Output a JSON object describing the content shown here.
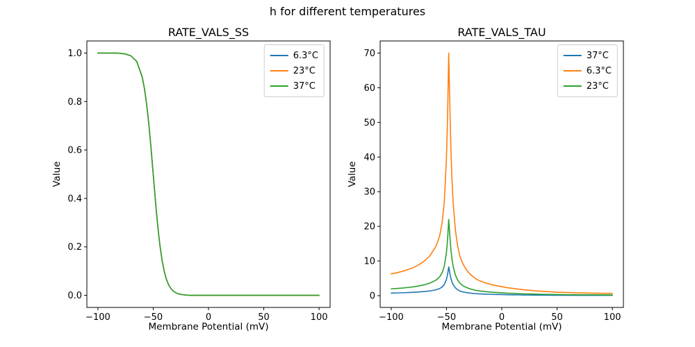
{
  "figure": {
    "suptitle": "h for different temperatures",
    "background": "#ffffff"
  },
  "chart_data": [
    {
      "type": "line",
      "title": "RATE_VALS_SS",
      "xlabel": "Membrane Potential (mV)",
      "ylabel": "Value",
      "xlim": [
        -110,
        110
      ],
      "ylim": [
        -0.05,
        1.05
      ],
      "xticks": [
        -100,
        -50,
        0,
        50,
        100
      ],
      "xtick_labels": [
        "−100",
        "−50",
        "0",
        "50",
        "100"
      ],
      "yticks": [
        0.0,
        0.2,
        0.4,
        0.6,
        0.8,
        1.0
      ],
      "ytick_labels": [
        "0.0",
        "0.2",
        "0.4",
        "0.6",
        "0.8",
        "1.0"
      ],
      "legend_position": "upper right",
      "grid": false,
      "note": "All three temperature curves overlap exactly; the last-drawn green (37°C) curve is the visible one.",
      "x": [
        -100,
        -95,
        -90,
        -85,
        -80,
        -75,
        -70,
        -65,
        -60,
        -58,
        -56,
        -54,
        -52,
        -50,
        -49,
        -48,
        -47,
        -46,
        -45,
        -44,
        -42,
        -40,
        -38,
        -36,
        -34,
        -32,
        -30,
        -28,
        -26,
        -24,
        -22,
        -20,
        -15,
        -10,
        -5,
        0,
        5,
        10,
        15,
        20,
        30,
        40,
        50,
        60,
        70,
        80,
        90,
        100
      ],
      "series": [
        {
          "name": "6.3°C",
          "color": "#1f77b4",
          "values": [
            1.0,
            1.0,
            1.0,
            1.0,
            0.999,
            0.996,
            0.988,
            0.966,
            0.902,
            0.855,
            0.791,
            0.709,
            0.609,
            0.5,
            0.445,
            0.391,
            0.339,
            0.291,
            0.248,
            0.209,
            0.145,
            0.098,
            0.065,
            0.043,
            0.028,
            0.018,
            0.012,
            0.007,
            0.005,
            0.003,
            0.002,
            0.001,
            0.0,
            0.0,
            0.0,
            0.0,
            0.0,
            0.0,
            0.0,
            0.0,
            0.0,
            0.0,
            0.0,
            0.0,
            0.0,
            0.0,
            0.0,
            0.0
          ]
        },
        {
          "name": "23°C",
          "color": "#ff7f0e",
          "values": [
            1.0,
            1.0,
            1.0,
            1.0,
            0.999,
            0.996,
            0.988,
            0.966,
            0.902,
            0.855,
            0.791,
            0.709,
            0.609,
            0.5,
            0.445,
            0.391,
            0.339,
            0.291,
            0.248,
            0.209,
            0.145,
            0.098,
            0.065,
            0.043,
            0.028,
            0.018,
            0.012,
            0.007,
            0.005,
            0.003,
            0.002,
            0.001,
            0.0,
            0.0,
            0.0,
            0.0,
            0.0,
            0.0,
            0.0,
            0.0,
            0.0,
            0.0,
            0.0,
            0.0,
            0.0,
            0.0,
            0.0,
            0.0
          ]
        },
        {
          "name": "37°C",
          "color": "#2ca02c",
          "values": [
            1.0,
            1.0,
            1.0,
            1.0,
            0.999,
            0.996,
            0.988,
            0.966,
            0.902,
            0.855,
            0.791,
            0.709,
            0.609,
            0.5,
            0.445,
            0.391,
            0.339,
            0.291,
            0.248,
            0.209,
            0.145,
            0.098,
            0.065,
            0.043,
            0.028,
            0.018,
            0.012,
            0.007,
            0.005,
            0.003,
            0.002,
            0.001,
            0.0,
            0.0,
            0.0,
            0.0,
            0.0,
            0.0,
            0.0,
            0.0,
            0.0,
            0.0,
            0.0,
            0.0,
            0.0,
            0.0,
            0.0,
            0.0
          ]
        }
      ]
    },
    {
      "type": "line",
      "title": "RATE_VALS_TAU",
      "xlabel": "Membrane Potential (mV)",
      "ylabel": "Value",
      "xlim": [
        -110,
        110
      ],
      "ylim": [
        -3.4,
        73.5
      ],
      "xticks": [
        -100,
        -50,
        0,
        50,
        100
      ],
      "xtick_labels": [
        "−100",
        "−50",
        "0",
        "50",
        "100"
      ],
      "yticks": [
        0,
        10,
        20,
        30,
        40,
        50,
        60,
        70
      ],
      "ytick_labels": [
        "0",
        "10",
        "20",
        "30",
        "40",
        "50",
        "60",
        "70"
      ],
      "legend_position": "upper right",
      "grid": false,
      "note": "Sharp resonance peak near −48 mV; peak heights ≈ 8.3 (37°C), 22 (23°C), 70 (6.3°C).",
      "x": [
        -100,
        -95,
        -90,
        -85,
        -80,
        -75,
        -70,
        -65,
        -60,
        -58,
        -56,
        -54,
        -52,
        -50,
        -49,
        -48,
        -47,
        -46,
        -45,
        -44,
        -42,
        -40,
        -38,
        -36,
        -34,
        -32,
        -30,
        -28,
        -26,
        -24,
        -22,
        -20,
        -15,
        -10,
        -5,
        0,
        5,
        10,
        15,
        20,
        30,
        40,
        50,
        60,
        70,
        80,
        90,
        100
      ],
      "series": [
        {
          "name": "37°C",
          "color": "#1f77b4",
          "values": [
            0.75,
            0.78,
            0.83,
            0.89,
            0.96,
            1.06,
            1.19,
            1.36,
            1.66,
            1.84,
            2.08,
            2.49,
            3.2,
            4.74,
            6.17,
            8.3,
            6.52,
            4.98,
            3.91,
            3.2,
            2.25,
            1.72,
            1.36,
            1.16,
            1.01,
            0.89,
            0.79,
            0.71,
            0.65,
            0.59,
            0.55,
            0.51,
            0.44,
            0.38,
            0.34,
            0.31,
            0.27,
            0.25,
            0.23,
            0.2,
            0.17,
            0.14,
            0.12,
            0.11,
            0.09,
            0.09,
            0.08,
            0.08
          ]
        },
        {
          "name": "6.3°C",
          "color": "#ff7f0e",
          "values": [
            6.3,
            6.6,
            7.0,
            7.5,
            8.1,
            8.9,
            10.0,
            11.5,
            14.0,
            15.5,
            17.5,
            21.0,
            27.0,
            40.0,
            52.0,
            70.0,
            55.0,
            42.0,
            33.0,
            27.0,
            19.0,
            14.5,
            11.5,
            9.8,
            8.5,
            7.5,
            6.7,
            6.0,
            5.5,
            5.0,
            4.6,
            4.3,
            3.7,
            3.2,
            2.9,
            2.6,
            2.3,
            2.1,
            1.9,
            1.7,
            1.4,
            1.2,
            1.0,
            0.9,
            0.8,
            0.75,
            0.7,
            0.65
          ]
        },
        {
          "name": "23°C",
          "color": "#2ca02c",
          "values": [
            1.98,
            2.08,
            2.2,
            2.36,
            2.55,
            2.8,
            3.14,
            3.62,
            4.4,
            4.87,
            5.5,
            6.6,
            8.49,
            12.58,
            16.35,
            22.0,
            17.3,
            13.21,
            10.38,
            8.49,
            5.97,
            4.56,
            3.62,
            3.08,
            2.67,
            2.36,
            2.11,
            1.89,
            1.73,
            1.57,
            1.45,
            1.35,
            1.16,
            1.01,
            0.91,
            0.82,
            0.72,
            0.66,
            0.6,
            0.53,
            0.44,
            0.38,
            0.31,
            0.28,
            0.25,
            0.24,
            0.22,
            0.2
          ]
        }
      ]
    }
  ]
}
